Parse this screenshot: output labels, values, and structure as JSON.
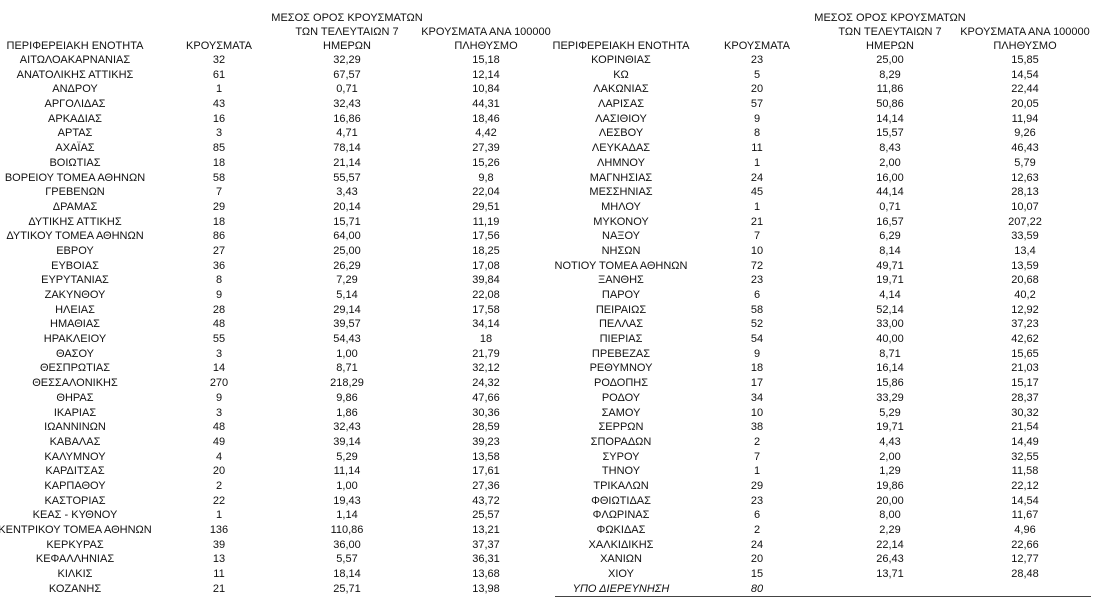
{
  "left_table": {
    "headers": [
      "ΠΕΡΙΦΕΡΕΙΑΚΗ ΕΝΟΤΗΤΑ",
      "ΚΡΟΥΣΜΑΤΑ",
      "ΜΕΣΟΣ ΟΡΟΣ ΚΡΟΥΣΜΑΤΩΝ\nΤΩΝ ΤΕΛΕΥΤΑΙΩΝ 7\nΗΜΕΡΩΝ",
      "ΚΡΟΥΣΜΑΤΑ ΑΝΑ 100000\nΠΛΗΘΥΣΜΟ"
    ],
    "rows": [
      [
        "ΑΙΤΩΛΟΑΚΑΡΝΑΝΙΑΣ",
        "32",
        "32,29",
        "15,18"
      ],
      [
        "ΑΝΑΤΟΛΙΚΗΣ ΑΤΤΙΚΗΣ",
        "61",
        "67,57",
        "12,14"
      ],
      [
        "ΑΝΔΡΟΥ",
        "1",
        "0,71",
        "10,84"
      ],
      [
        "ΑΡΓΟΛΙΔΑΣ",
        "43",
        "32,43",
        "44,31"
      ],
      [
        "ΑΡΚΑΔΙΑΣ",
        "16",
        "16,86",
        "18,46"
      ],
      [
        "ΑΡΤΑΣ",
        "3",
        "4,71",
        "4,42"
      ],
      [
        "ΑΧΑΪΑΣ",
        "85",
        "78,14",
        "27,39"
      ],
      [
        "ΒΟΙΩΤΙΑΣ",
        "18",
        "21,14",
        "15,26"
      ],
      [
        "ΒΟΡΕΙΟΥ ΤΟΜΕΑ ΑΘΗΝΩΝ",
        "58",
        "55,57",
        "9,8"
      ],
      [
        "ΓΡΕΒΕΝΩΝ",
        "7",
        "3,43",
        "22,04"
      ],
      [
        "ΔΡΑΜΑΣ",
        "29",
        "20,14",
        "29,51"
      ],
      [
        "ΔΥΤΙΚΗΣ ΑΤΤΙΚΗΣ",
        "18",
        "15,71",
        "11,19"
      ],
      [
        "ΔΥΤΙΚΟΥ ΤΟΜΕΑ ΑΘΗΝΩΝ",
        "86",
        "64,00",
        "17,56"
      ],
      [
        "ΕΒΡΟΥ",
        "27",
        "25,00",
        "18,25"
      ],
      [
        "ΕΥΒΟΙΑΣ",
        "36",
        "26,29",
        "17,08"
      ],
      [
        "ΕΥΡΥΤΑΝΙΑΣ",
        "8",
        "7,29",
        "39,84"
      ],
      [
        "ΖΑΚΥΝΘΟΥ",
        "9",
        "5,14",
        "22,08"
      ],
      [
        "ΗΛΕΙΑΣ",
        "28",
        "29,14",
        "17,58"
      ],
      [
        "ΗΜΑΘΙΑΣ",
        "48",
        "39,57",
        "34,14"
      ],
      [
        "ΗΡΑΚΛΕΙΟΥ",
        "55",
        "54,43",
        "18"
      ],
      [
        "ΘΑΣΟΥ",
        "3",
        "1,00",
        "21,79"
      ],
      [
        "ΘΕΣΠΡΩΤΙΑΣ",
        "14",
        "8,71",
        "32,12"
      ],
      [
        "ΘΕΣΣΑΛΟΝΙΚΗΣ",
        "270",
        "218,29",
        "24,32"
      ],
      [
        "ΘΗΡΑΣ",
        "9",
        "9,86",
        "47,66"
      ],
      [
        "ΙΚΑΡΙΑΣ",
        "3",
        "1,86",
        "30,36"
      ],
      [
        "ΙΩΑΝΝΙΝΩΝ",
        "48",
        "32,43",
        "28,59"
      ],
      [
        "ΚΑΒΑΛΑΣ",
        "49",
        "39,14",
        "39,23"
      ],
      [
        "ΚΑΛΥΜΝΟΥ",
        "4",
        "5,29",
        "13,58"
      ],
      [
        "ΚΑΡΔΙΤΣΑΣ",
        "20",
        "11,14",
        "17,61"
      ],
      [
        "ΚΑΡΠΑΘΟΥ",
        "2",
        "1,00",
        "27,36"
      ],
      [
        "ΚΑΣΤΟΡΙΑΣ",
        "22",
        "19,43",
        "43,72"
      ],
      [
        "ΚΕΑΣ - ΚΥΘΝΟΥ",
        "1",
        "1,14",
        "25,57"
      ],
      [
        "ΚΕΝΤΡΙΚΟΥ ΤΟΜΕΑ ΑΘΗΝΩΝ",
        "136",
        "110,86",
        "13,21"
      ],
      [
        "ΚΕΡΚΥΡΑΣ",
        "39",
        "36,00",
        "37,37"
      ],
      [
        "ΚΕΦΑΛΛΗΝΙΑΣ",
        "13",
        "5,57",
        "36,31"
      ],
      [
        "ΚΙΛΚΙΣ",
        "11",
        "18,14",
        "13,68"
      ],
      [
        "ΚΟΖΑΝΗΣ",
        "21",
        "25,71",
        "13,98"
      ]
    ]
  },
  "right_table": {
    "headers": [
      "ΠΕΡΙΦΕΡΕΙΑΚΗ ΕΝΟΤΗΤΑ",
      "ΚΡΟΥΣΜΑΤΑ",
      "ΜΕΣΟΣ ΟΡΟΣ ΚΡΟΥΣΜΑΤΩΝ\nΤΩΝ ΤΕΛΕΥΤΑΙΩΝ 7\nΗΜΕΡΩΝ",
      "ΚΡΟΥΣΜΑΤΑ ΑΝΑ 100000\nΠΛΗΘΥΣΜΟ"
    ],
    "rows": [
      [
        "ΚΟΡΙΝΘΙΑΣ",
        "23",
        "25,00",
        "15,85"
      ],
      [
        "ΚΩ",
        "5",
        "8,29",
        "14,54"
      ],
      [
        "ΛΑΚΩΝΙΑΣ",
        "20",
        "11,86",
        "22,44"
      ],
      [
        "ΛΑΡΙΣΑΣ",
        "57",
        "50,86",
        "20,05"
      ],
      [
        "ΛΑΣΙΘΙΟΥ",
        "9",
        "14,14",
        "11,94"
      ],
      [
        "ΛΕΣΒΟΥ",
        "8",
        "15,57",
        "9,26"
      ],
      [
        "ΛΕΥΚΑΔΑΣ",
        "11",
        "8,43",
        "46,43"
      ],
      [
        "ΛΗΜΝΟΥ",
        "1",
        "2,00",
        "5,79"
      ],
      [
        "ΜΑΓΝΗΣΙΑΣ",
        "24",
        "16,00",
        "12,63"
      ],
      [
        "ΜΕΣΣΗΝΙΑΣ",
        "45",
        "44,14",
        "28,13"
      ],
      [
        "ΜΗΛΟΥ",
        "1",
        "0,71",
        "10,07"
      ],
      [
        "ΜΥΚΟΝΟΥ",
        "21",
        "16,57",
        "207,22"
      ],
      [
        "ΝΑΞΟΥ",
        "7",
        "6,29",
        "33,59"
      ],
      [
        "ΝΗΣΩΝ",
        "10",
        "8,14",
        "13,4"
      ],
      [
        "ΝΟΤΙΟΥ ΤΟΜΕΑ ΑΘΗΝΩΝ",
        "72",
        "49,71",
        "13,59"
      ],
      [
        "ΞΑΝΘΗΣ",
        "23",
        "19,71",
        "20,68"
      ],
      [
        "ΠΑΡΟΥ",
        "6",
        "4,14",
        "40,2"
      ],
      [
        "ΠΕΙΡΑΙΩΣ",
        "58",
        "52,14",
        "12,92"
      ],
      [
        "ΠΕΛΛΑΣ",
        "52",
        "33,00",
        "37,23"
      ],
      [
        "ΠΙΕΡΙΑΣ",
        "54",
        "40,00",
        "42,62"
      ],
      [
        "ΠΡΕΒΕΖΑΣ",
        "9",
        "8,71",
        "15,65"
      ],
      [
        "ΡΕΘΥΜΝΟΥ",
        "18",
        "16,14",
        "21,03"
      ],
      [
        "ΡΟΔΟΠΗΣ",
        "17",
        "15,86",
        "15,17"
      ],
      [
        "ΡΟΔΟΥ",
        "34",
        "33,29",
        "28,37"
      ],
      [
        "ΣΑΜΟΥ",
        "10",
        "5,29",
        "30,32"
      ],
      [
        "ΣΕΡΡΩΝ",
        "38",
        "19,71",
        "21,54"
      ],
      [
        "ΣΠΟΡΑΔΩΝ",
        "2",
        "4,43",
        "14,49"
      ],
      [
        "ΣΥΡΟΥ",
        "7",
        "2,00",
        "32,55"
      ],
      [
        "ΤΗΝΟΥ",
        "1",
        "1,29",
        "11,58"
      ],
      [
        "ΤΡΙΚΑΛΩΝ",
        "29",
        "19,86",
        "22,12"
      ],
      [
        "ΦΘΙΩΤΙΔΑΣ",
        "23",
        "20,00",
        "14,54"
      ],
      [
        "ΦΛΩΡΙΝΑΣ",
        "6",
        "8,00",
        "11,67"
      ],
      [
        "ΦΩΚΙΔΑΣ",
        "2",
        "2,29",
        "4,96"
      ],
      [
        "ΧΑΛΚΙΔΙΚΗΣ",
        "24",
        "22,14",
        "22,66"
      ],
      [
        "ΧΑΝΙΩΝ",
        "20",
        "26,43",
        "12,77"
      ],
      [
        "ΧΙΟΥ",
        "15",
        "13,71",
        "28,48"
      ]
    ],
    "footer_row": [
      "ΥΠΟ ΔΙΕΡΕΥΝΗΣΗ",
      "80"
    ]
  }
}
